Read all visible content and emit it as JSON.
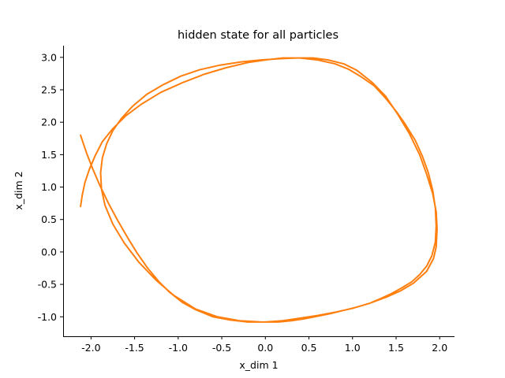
{
  "chart_data": {
    "type": "line",
    "title": "hidden state for all particles",
    "xlabel": "x_dim 1",
    "ylabel": "x_dim 2",
    "xlim": [
      -2.32,
      2.17
    ],
    "ylim": [
      -1.3,
      3.18
    ],
    "xticks": [
      "-2.0",
      "-1.5",
      "-1.0",
      "-0.5",
      "0.0",
      "0.5",
      "1.0",
      "1.5",
      "2.0"
    ],
    "yticks": [
      "-1.0",
      "-0.5",
      "0.0",
      "0.5",
      "1.0",
      "1.5",
      "2.0",
      "2.5",
      "3.0"
    ],
    "grid": false,
    "series": [
      {
        "color": "#ff7f0e",
        "x": [
          -2.12,
          -2.05,
          -1.98,
          -1.9,
          -1.8,
          -1.7,
          -1.58,
          -1.47,
          -1.35,
          -1.22,
          -1.1,
          -0.95,
          -0.8,
          -0.6,
          -0.4,
          -0.2,
          0.0,
          0.2,
          0.4,
          0.6,
          0.8,
          1.0,
          1.2,
          1.4,
          1.55,
          1.7,
          1.85,
          1.93,
          1.96,
          1.97,
          1.96,
          1.92,
          1.85,
          1.77,
          1.65,
          1.52,
          1.38,
          1.22,
          1.05,
          0.9,
          0.72,
          0.55,
          0.36,
          0.17,
          -0.05,
          -0.28,
          -0.52,
          -0.75,
          -0.97,
          -1.17,
          -1.36,
          -1.52,
          -1.65,
          -1.75,
          -1.82,
          -1.87,
          -1.89,
          -1.88,
          -1.84,
          -1.75,
          -1.62,
          -1.45,
          -1.25,
          -1.05,
          -0.8,
          -0.55,
          -0.3,
          -0.05,
          0.15,
          0.3,
          0.45,
          0.6,
          0.75,
          0.9,
          1.05,
          1.2,
          1.32,
          1.45,
          1.57,
          1.68,
          1.77,
          1.85,
          1.91,
          1.95,
          1.96,
          1.95,
          1.92,
          1.87,
          1.8,
          1.72,
          1.6,
          1.5,
          1.38,
          1.25,
          1.1,
          0.95,
          0.8,
          0.6,
          0.4,
          0.2,
          0.0,
          -0.2,
          -0.45,
          -0.7,
          -0.95,
          -1.2,
          -1.42,
          -1.6,
          -1.75,
          -1.87,
          -1.95,
          -2.02,
          -2.07,
          -2.1,
          -2.12
        ],
        "y": [
          1.8,
          1.52,
          1.28,
          1.03,
          0.75,
          0.5,
          0.22,
          -0.02,
          -0.25,
          -0.46,
          -0.62,
          -0.78,
          -0.89,
          -1.0,
          -1.05,
          -1.08,
          -1.08,
          -1.06,
          -1.02,
          -0.98,
          -0.93,
          -0.87,
          -0.79,
          -0.69,
          -0.6,
          -0.48,
          -0.3,
          -0.1,
          0.08,
          0.35,
          0.62,
          0.9,
          1.2,
          1.5,
          1.83,
          2.12,
          2.4,
          2.62,
          2.8,
          2.9,
          2.96,
          2.99,
          2.99,
          2.98,
          2.96,
          2.93,
          2.88,
          2.81,
          2.71,
          2.58,
          2.43,
          2.25,
          2.06,
          1.87,
          1.67,
          1.45,
          1.22,
          0.97,
          0.72,
          0.43,
          0.14,
          -0.16,
          -0.44,
          -0.67,
          -0.88,
          -1.0,
          -1.06,
          -1.08,
          -1.08,
          -1.06,
          -1.03,
          -0.99,
          -0.95,
          -0.9,
          -0.85,
          -0.79,
          -0.72,
          -0.64,
          -0.55,
          -0.46,
          -0.35,
          -0.22,
          -0.06,
          0.15,
          0.4,
          0.68,
          0.95,
          1.22,
          1.48,
          1.72,
          1.98,
          2.17,
          2.37,
          2.56,
          2.7,
          2.82,
          2.9,
          2.96,
          2.99,
          2.99,
          2.96,
          2.92,
          2.84,
          2.74,
          2.61,
          2.46,
          2.28,
          2.1,
          1.9,
          1.7,
          1.49,
          1.27,
          1.07,
          0.88,
          0.7
        ]
      }
    ]
  }
}
